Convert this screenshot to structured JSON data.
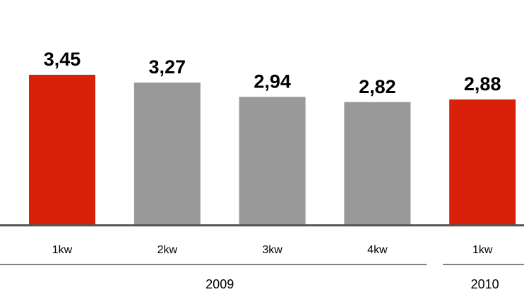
{
  "chart_data": {
    "type": "bar",
    "groups": [
      {
        "label": "2009",
        "categories": [
          "1kw",
          "2kw",
          "3kw",
          "4kw"
        ]
      },
      {
        "label": "2010",
        "categories": [
          "1kw"
        ]
      }
    ],
    "values": [
      3.45,
      3.27,
      2.94,
      2.82,
      2.88
    ],
    "value_labels": [
      "3,45",
      "3,27",
      "2,94",
      "2,82",
      "2,88"
    ],
    "colors": [
      "#d92008",
      "#999999",
      "#999999",
      "#999999",
      "#d92008"
    ]
  }
}
